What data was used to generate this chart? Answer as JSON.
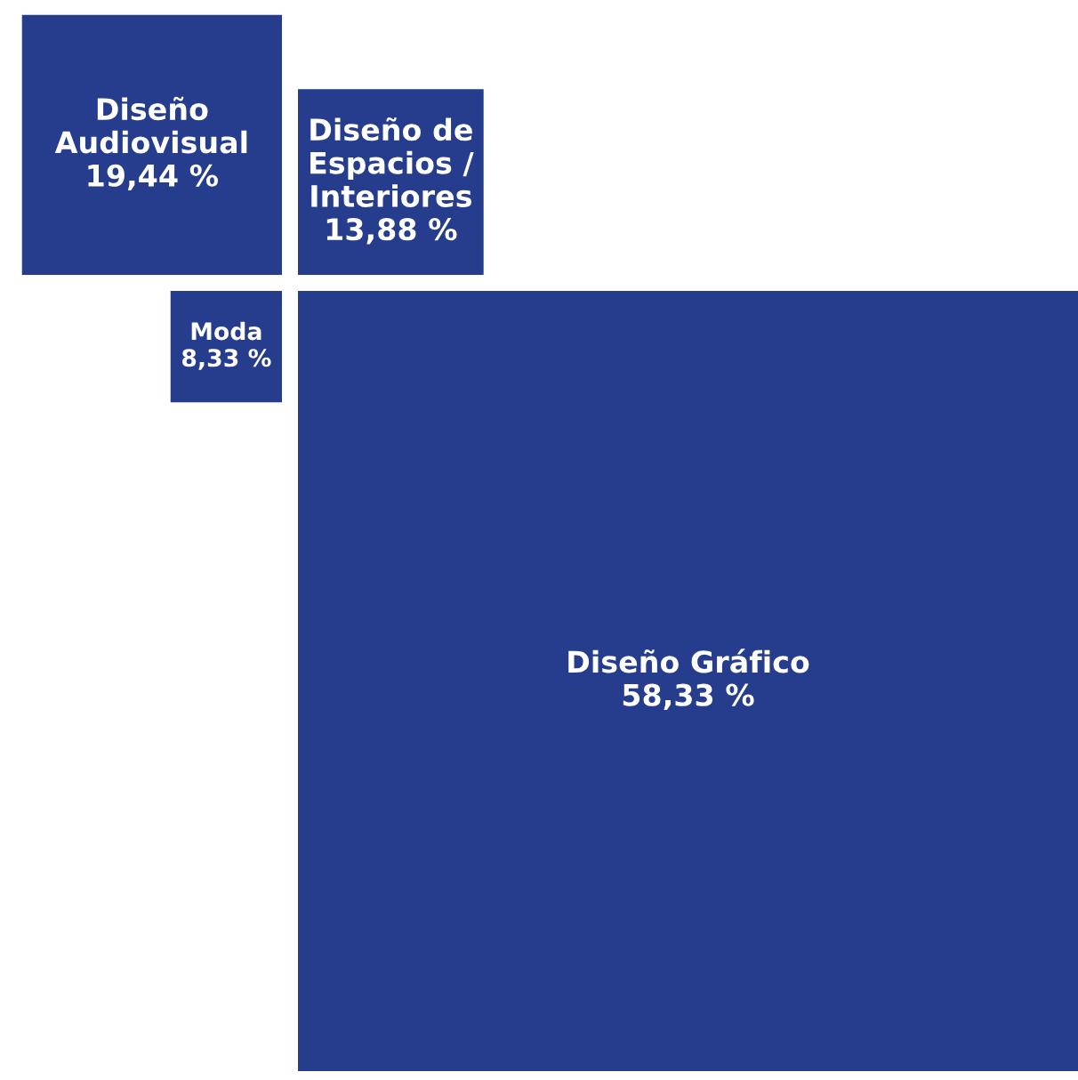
{
  "chart_data": {
    "type": "other",
    "categories": [
      "Diseño\nAudiovisual",
      "Diseño de\nEspacios /\nInteriores",
      "Moda",
      "Diseño Gráfico"
    ],
    "values": [
      19.44,
      13.88,
      8.33,
      58.33
    ],
    "value_labels": [
      "19,44 %",
      "13,88 %",
      "8,33 %",
      "58,33 %"
    ],
    "colors": [
      "#253d8c",
      "#253d8c",
      "#253d8c",
      "#253d8c"
    ]
  }
}
